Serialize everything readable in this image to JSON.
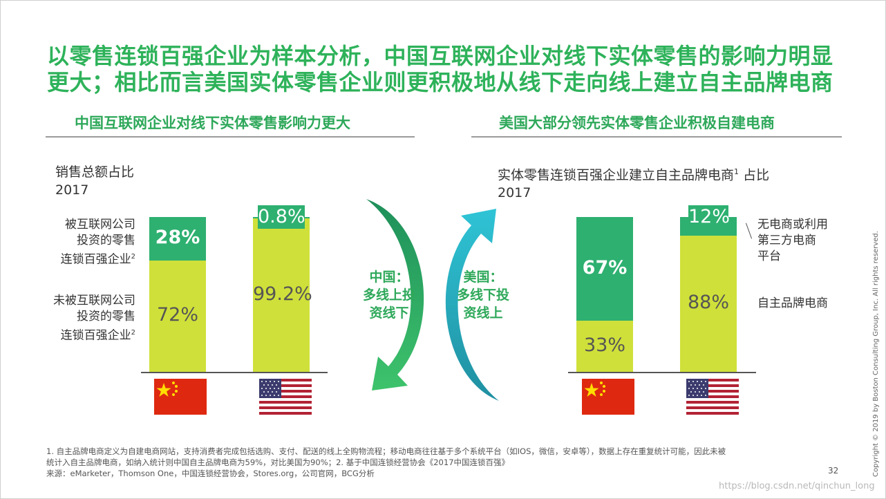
{
  "title": "以零售连锁百强企业为样本分析，中国互联网企业对线下实体零售的影响力明显更大；相比而言美国实体零售企业则更积极地从线下走向线上建立自主品牌电商",
  "left_section": {
    "title": "中国互联网企业对线下实体零售影响力更大",
    "metric": "销售总额占比",
    "year": "2017",
    "row_labels": [
      {
        "line1": "被互联网公司",
        "line2": "投资的零售",
        "line3": "连锁百强企业",
        "sup": "2"
      },
      {
        "line1": "未被互联网公司",
        "line2": "投资的零售",
        "line3": "连锁百强企业",
        "sup": "2"
      }
    ]
  },
  "right_section": {
    "title": "美国大部分领先实体零售企业积极自建电商",
    "metric": "实体零售连锁百强企业建立自主品牌电商",
    "metric_sup": "1",
    "metric_suffix": "占比",
    "year": "2017",
    "legend": [
      {
        "line1": "无电商或利用",
        "line2": "第三方电商",
        "line3": "平台"
      },
      {
        "line1": "自主品牌电商"
      }
    ]
  },
  "arrows": {
    "china": {
      "line1": "中国：",
      "line2": "多线上投",
      "line3": "资线下"
    },
    "usa": {
      "line1": "美国：",
      "line2": "多线下投",
      "line3": "资线上"
    }
  },
  "colors": {
    "dark_green": "#2eb070",
    "light_green": "#cfe03a",
    "title_green": "#2eb25a",
    "arrow_dark": "#1e8f5a",
    "arrow_cyan": "#2fc4d6"
  },
  "chart_data": [
    {
      "type": "bar",
      "stacked": true,
      "categories": [
        "China",
        "USA"
      ],
      "ylim": [
        0,
        100
      ],
      "series": [
        {
          "values": [
            72,
            99.2
          ],
          "labels": [
            "72%",
            "99.2%"
          ],
          "color": "#cfe03a"
        },
        {
          "values": [
            28,
            0.8
          ],
          "labels": [
            "28%",
            "0.8%"
          ],
          "color": "#2eb070"
        }
      ]
    },
    {
      "type": "bar",
      "stacked": true,
      "categories": [
        "China",
        "USA"
      ],
      "ylim": [
        0,
        100
      ],
      "series": [
        {
          "name": "自主品牌电商",
          "values": [
            33,
            88
          ],
          "labels": [
            "33%",
            "88%"
          ],
          "color": "#cfe03a"
        },
        {
          "name": "无电商或利用第三方电商平台",
          "values": [
            67,
            12
          ],
          "labels": [
            "67%",
            "12%"
          ],
          "color": "#2eb070"
        }
      ]
    }
  ],
  "footnotes": {
    "line1": "1. 自主品牌电商定义为自建电商网站，支持消费者完成包括选购、支付、配送的线上全购物流程；移动电商往往基于多个系统平台（如IOS，微信，安卓等），数据上存在重复统计可能，因此未被",
    "line2": "统计入自主品牌电商，如纳入统计则中国自主品牌电商为59%，对比美国为90%；2. 基于中国连锁经营协会《2017中国连锁百强》",
    "source": "来源：eMarketer，Thomson One，中国连锁经营协会，Stores.org，公司官网，BCG分析"
  },
  "page_number": "32",
  "copyright": "Copyright © 2019 by Boston Consulting Group, Inc. All rights reserved.",
  "watermark": "https://blog.csdn.net/qinchun_long"
}
